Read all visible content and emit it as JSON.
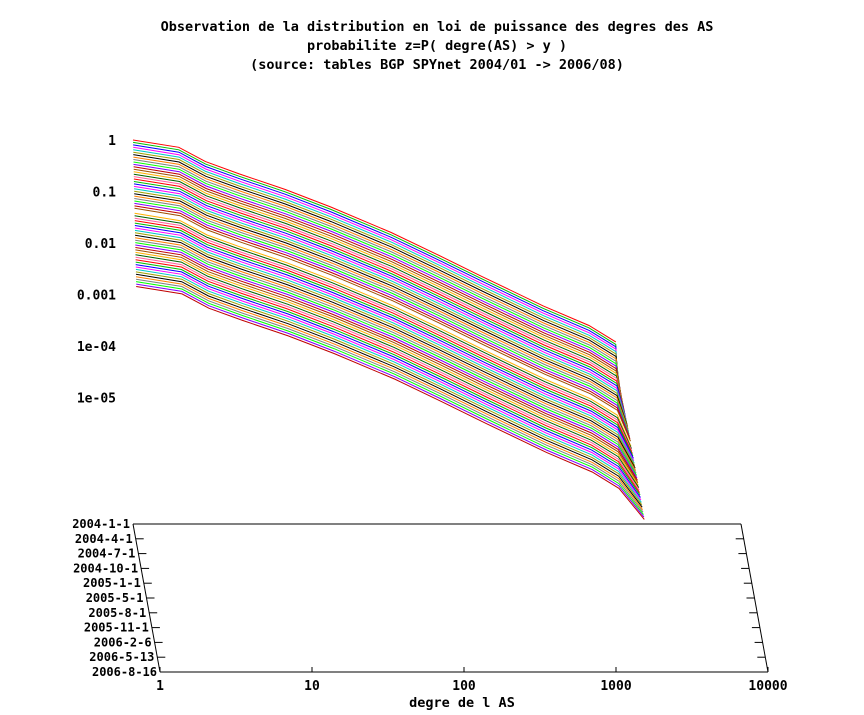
{
  "chart_data": {
    "type": "line",
    "title_lines": [
      "Observation de la distribution en loi de puissance des degres des AS",
      "probabilite z=P( degre(AS) > y )",
      "(source: tables BGP SPYnet 2004/01 -> 2006/08)"
    ],
    "xlabel": "degre de l AS",
    "x_scale": "log",
    "xlim": [
      1,
      10000
    ],
    "x_ticks": [
      "1",
      "10",
      "100",
      "1000",
      "10000"
    ],
    "z_scale": "log",
    "z_ticks": [
      "1",
      "0.1",
      "0.01",
      "0.001",
      "1e-04",
      "1e-05"
    ],
    "date_ticks": [
      "2004-1-1",
      "2004-4-1",
      "2004-7-1",
      "2004-10-1",
      "2005-1-1",
      "2005-5-1",
      "2005-8-1",
      "2005-11-1",
      "2006-2-6",
      "2006-5-13",
      "2006-8-16"
    ],
    "series_count": 60,
    "series_shape": {
      "x_degree": [
        1,
        2,
        3,
        5,
        10,
        20,
        50,
        100,
        200,
        500,
        1000,
        1500,
        2200
      ],
      "ccdf": [
        1.0,
        0.72,
        0.38,
        0.22,
        0.11,
        0.05,
        0.016,
        0.006,
        0.0022,
        0.0006,
        0.00025,
        0.00012,
        3e-05
      ]
    },
    "colors": [
      "#ff0000",
      "#00c000",
      "#0000ff",
      "#ff00ff",
      "#00c8c8",
      "#a0a000",
      "#000000",
      "#ff8000",
      "#808080",
      "#00ff00",
      "#8000ff",
      "#c00000",
      "#a05000",
      "#ffb000",
      "#006000",
      "#ff60a0"
    ]
  }
}
